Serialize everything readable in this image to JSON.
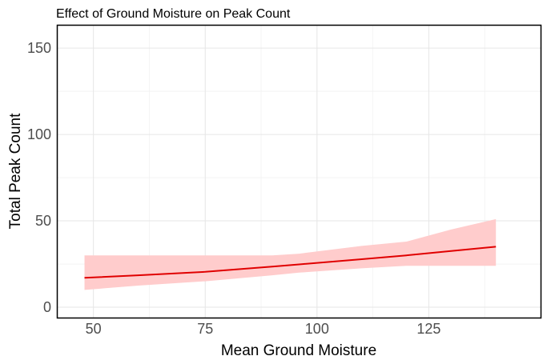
{
  "chart_data": {
    "type": "line",
    "title": "Effect of Ground Moisture on Peak Count",
    "xlabel": "Mean Ground Moisture",
    "ylabel": "Total Peak Count",
    "xlim": [
      42,
      150
    ],
    "ylim": [
      -6,
      163
    ],
    "x_ticks": [
      50,
      75,
      100,
      125
    ],
    "y_ticks": [
      0,
      50,
      100,
      150
    ],
    "x_tick_labels": [
      "50",
      "75",
      "100",
      "125"
    ],
    "y_tick_labels": [
      "0",
      "50",
      "100",
      "150"
    ],
    "grid": true,
    "fit": {
      "x": [
        48,
        60,
        75,
        90,
        96,
        110,
        120,
        130,
        140
      ],
      "y": [
        17,
        18.5,
        20.5,
        23.5,
        24.8,
        27.8,
        30,
        32.5,
        35
      ],
      "lower": [
        10,
        12.5,
        15,
        18.5,
        20,
        22.5,
        24,
        24,
        24
      ],
      "upper": [
        30,
        30,
        30,
        30,
        31,
        35.5,
        38,
        45,
        51
      ]
    },
    "colors": {
      "line": "#e00000",
      "band": "#ffcccc"
    }
  }
}
